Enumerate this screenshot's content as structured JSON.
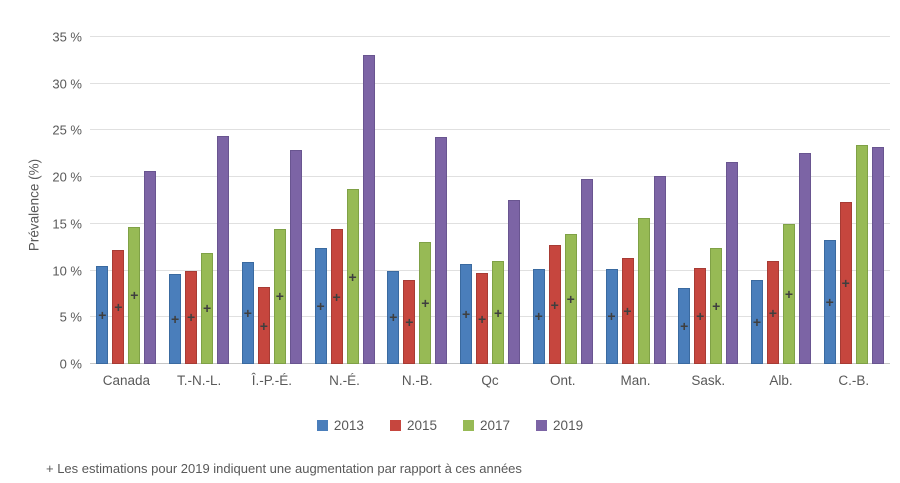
{
  "chart_data": {
    "type": "bar",
    "title": "",
    "ylabel": "Prévalence (%)",
    "ylim": [
      0,
      35
    ],
    "grid": true,
    "legend_position": "bottom",
    "plus_symbol": "+",
    "footnote": "+ Les estimations pour 2019 indiquent une augmentation par rapport à ces années",
    "yticks": [
      {
        "value": 0,
        "label": "0 %"
      },
      {
        "value": 5,
        "label": "5 %"
      },
      {
        "value": 10,
        "label": "10 %"
      },
      {
        "value": 15,
        "label": "15 %"
      },
      {
        "value": 20,
        "label": "20 %"
      },
      {
        "value": 25,
        "label": "25 %"
      },
      {
        "value": 30,
        "label": "30 %"
      },
      {
        "value": 35,
        "label": "35 %"
      }
    ],
    "categories": [
      "Canada",
      "T.-N.-L.",
      "Î.-P.-É.",
      "N.-É.",
      "N.-B.",
      "Qc",
      "Ont.",
      "Man.",
      "Sask.",
      "Alb.",
      "C.-B."
    ],
    "series": [
      {
        "name": "2013",
        "color": "#4A7EBB",
        "border_color": "#3A6AA0",
        "values": [
          10.5,
          9.6,
          10.9,
          12.4,
          10.0,
          10.7,
          10.2,
          10.2,
          8.1,
          9.0,
          13.3
        ],
        "plus_marker": [
          true,
          true,
          true,
          true,
          true,
          true,
          true,
          true,
          true,
          true,
          true
        ]
      },
      {
        "name": "2015",
        "color": "#C6463E",
        "border_color": "#A73B34",
        "values": [
          12.2,
          10.0,
          8.2,
          14.4,
          9.0,
          9.7,
          12.7,
          11.3,
          10.3,
          11.0,
          17.3
        ],
        "plus_marker": [
          true,
          true,
          true,
          true,
          true,
          true,
          true,
          true,
          true,
          true,
          true
        ]
      },
      {
        "name": "2017",
        "color": "#97BA55",
        "border_color": "#7FA146",
        "values": [
          14.7,
          11.9,
          14.5,
          18.7,
          13.1,
          11.0,
          13.9,
          15.6,
          12.4,
          15.0,
          23.4
        ],
        "plus_marker": [
          true,
          true,
          true,
          true,
          true,
          true,
          true,
          false,
          true,
          true,
          false
        ]
      },
      {
        "name": "2019",
        "color": "#7C64A5",
        "border_color": "#695590",
        "values": [
          20.7,
          24.4,
          22.9,
          33.1,
          24.3,
          17.6,
          19.8,
          20.1,
          21.6,
          22.6,
          23.2
        ],
        "plus_marker": [
          false,
          false,
          false,
          false,
          false,
          false,
          false,
          false,
          false,
          false,
          false
        ]
      }
    ]
  }
}
